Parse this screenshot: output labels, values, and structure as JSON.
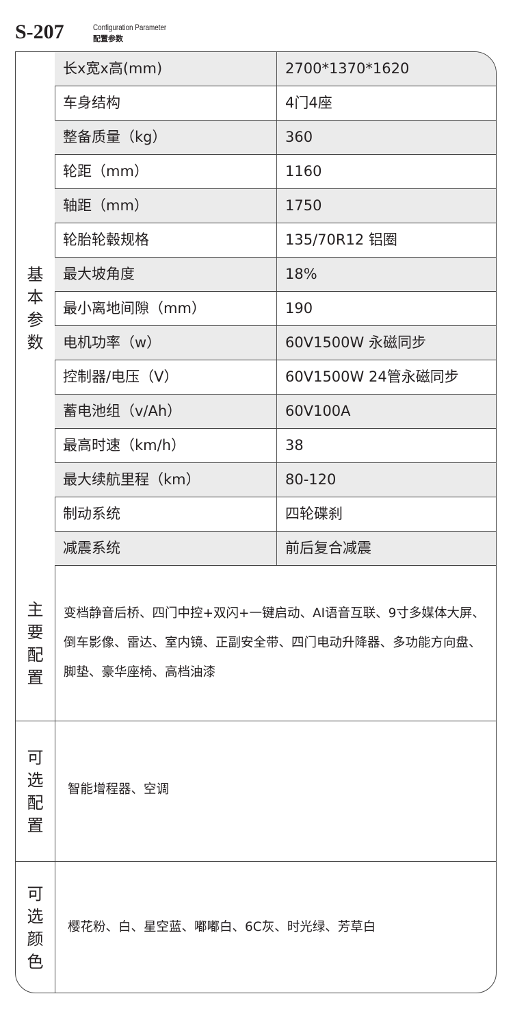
{
  "header": {
    "model": "S-207",
    "subtitle_en": "Configuration Parameter",
    "subtitle_zh": "配置参数"
  },
  "basic": {
    "label": [
      "基",
      "本",
      "参",
      "数"
    ],
    "rows": [
      {
        "key": "长x宽x高(mm)",
        "value": "2700*1370*1620"
      },
      {
        "key": "车身结构",
        "value": "4门4座"
      },
      {
        "key": "整备质量（kg）",
        "value": "360"
      },
      {
        "key": "轮距（mm）",
        "value": "1160"
      },
      {
        "key": "轴距（mm）",
        "value": "1750"
      },
      {
        "key": "轮胎轮毂规格",
        "value": "135/70R12 铝圈"
      },
      {
        "key": "最大坡角度",
        "value": "18%"
      },
      {
        "key": "最小离地间隙（mm）",
        "value": "190"
      },
      {
        "key": "电机功率（w）",
        "value": "60V1500W 永磁同步"
      },
      {
        "key": "控制器/电压（V）",
        "value": "60V1500W 24管永磁同步"
      },
      {
        "key": "蓄电池组（v/Ah）",
        "value": "60V100A"
      },
      {
        "key": "最高时速（km/h）",
        "value": "38"
      },
      {
        "key": "最大续航里程（km）",
        "value": "80-120"
      },
      {
        "key": "制动系统",
        "value": "四轮碟刹"
      },
      {
        "key": "减震系统",
        "value": "前后复合减震"
      }
    ]
  },
  "main_config": {
    "label": [
      "主",
      "要",
      "配",
      "置"
    ],
    "text": "变档静音后桥、四门中控+双闪+一键启动、AI语音互联、9寸多媒体大屏、倒车影像、雷达、室内镜、正副安全带、四门电动升降器、多功能方向盘、脚垫、豪华座椅、高档油漆"
  },
  "optional_config": {
    "label": [
      "可",
      "选",
      "配",
      "置"
    ],
    "text": "智能增程器、空调"
  },
  "optional_colors": {
    "label": [
      "可",
      "选",
      "颜",
      "色"
    ],
    "text": "樱花粉、白、星空蓝、嘟嘟白、6C灰、时光绿、芳草白"
  },
  "colors": {
    "row_alt": "#ebebeb",
    "border": "#444444",
    "text": "#231f20"
  }
}
